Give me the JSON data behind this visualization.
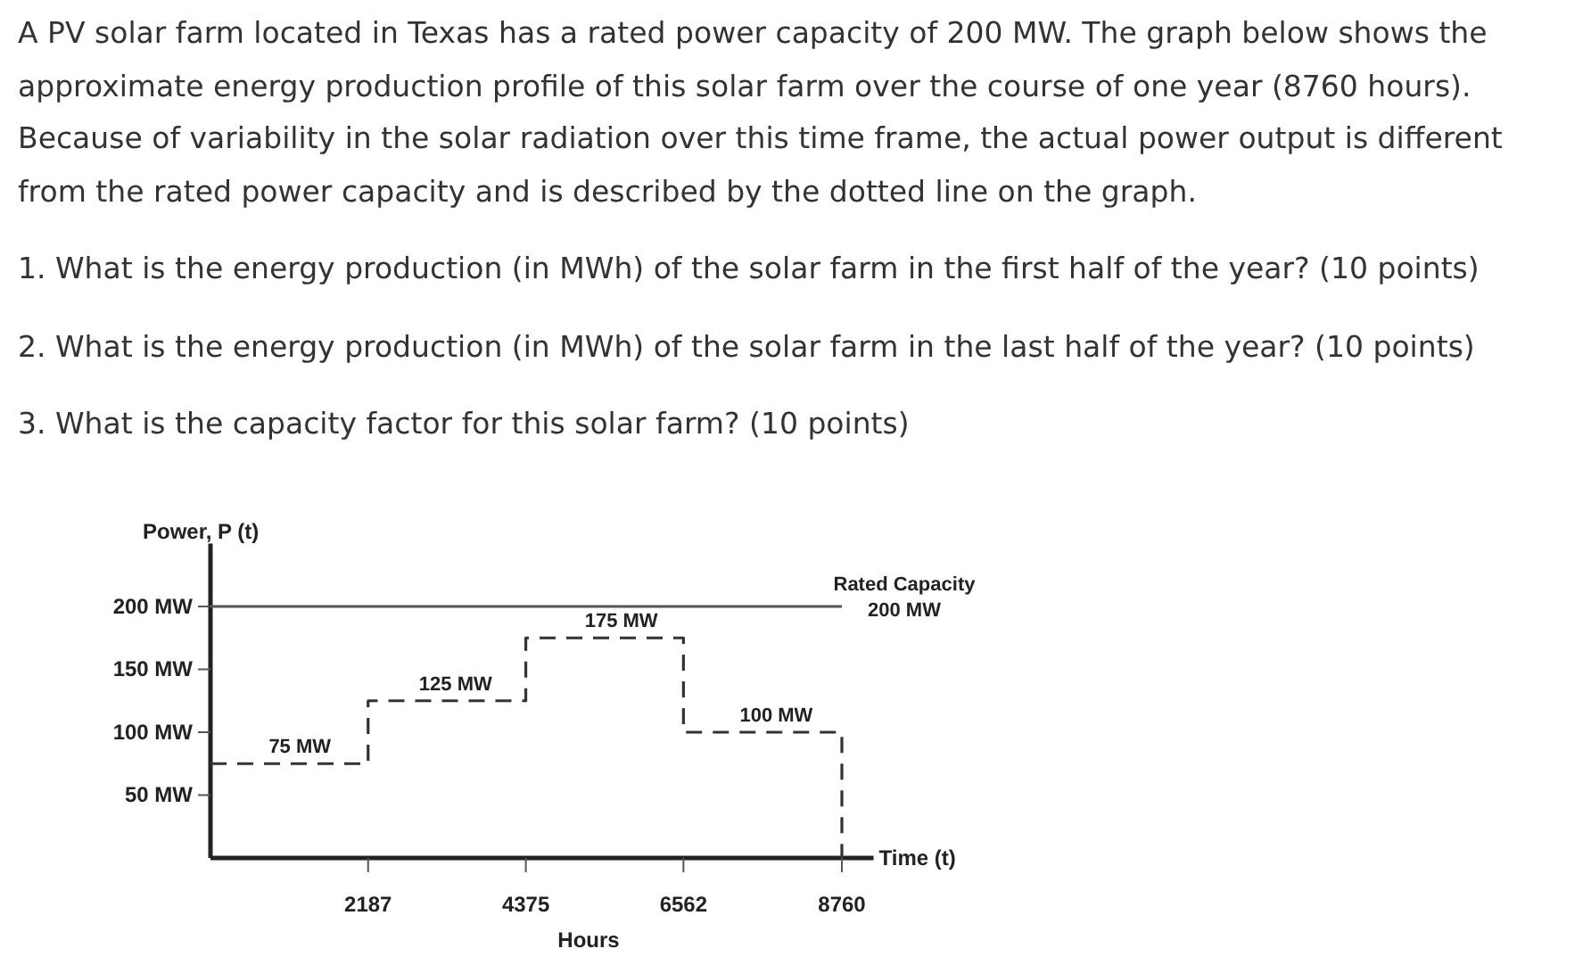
{
  "chart_data": {
    "type": "step",
    "title": "A PV solar farm located in Texas has a rated power capacity of 200 MW. The graph below shows the approximate energy production profile of this solar farm over the course of one year (8760 hours). Because of variability in the solar radiation over this time frame, the actual power output is different from the rated power capacity and is described by the dotted line on the graph.",
    "annotations": [
      "1. What is the energy production (in MWh) of the solar farm in the first half of the year? (10 points)",
      "2. What is the energy production (in MWh) of the solar farm in the last half of the year? (10 points)",
      "3. What is the capacity factor for this solar farm? (10 points)",
      {
        "text": "75 MW",
        "x": 1240,
        "y": 75
      },
      {
        "text": "125 MW",
        "x": 3400,
        "y": 125
      },
      {
        "text": "175 MW",
        "x": 5700,
        "y": 175
      },
      {
        "text": "100 MW",
        "x": 7850,
        "y": 100
      },
      "Hours"
    ],
    "ylabel": "Power, P (t)",
    "xlabel": "Time (t)",
    "x": [
      0,
      2187,
      4375,
      6562,
      8760
    ],
    "series": [
      {
        "color": "#333333",
        "values": [
          75,
          125,
          175,
          100,
          0
        ]
      }
    ],
    "line_style": "dashed",
    "grid": false,
    "xlim": [
      0,
      9200
    ],
    "xticks": [
      2187,
      4375,
      6562,
      8760
    ],
    "ylim": [
      0,
      250
    ],
    "yticks": [
      {
        "value": 50,
        "label": "50 MW"
      },
      {
        "value": 100,
        "label": "100 MW"
      },
      {
        "value": 150,
        "label": "150 MW"
      },
      {
        "value": 200,
        "label": "200 MW"
      }
    ],
    "ref_lines": [
      {
        "axis": "y",
        "value": 200,
        "label": "Rated Capacity\n200 MW",
        "color": "#555555",
        "line_style": "solid"
      }
    ]
  }
}
